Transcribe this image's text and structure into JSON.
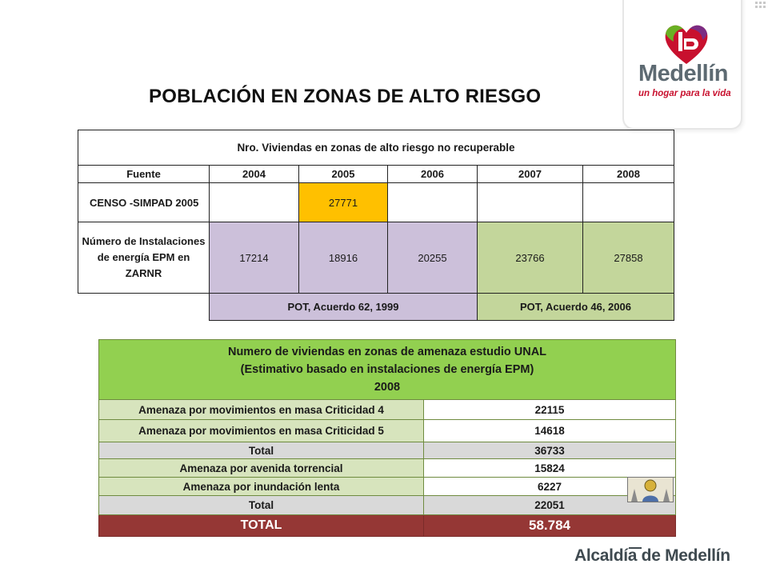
{
  "title": "POBLACIÓN EN ZONAS DE ALTO RIESGO",
  "logo": {
    "name": "Medellín",
    "tagline": "un hogar para la vida",
    "colors": {
      "red": "#c8102e",
      "green": "#6ab023",
      "purple": "#7b2c83",
      "gray": "#5d6a72"
    }
  },
  "table1": {
    "caption": "Nro. Viviendas en zonas de alto riesgo no recuperable",
    "headers": [
      "Fuente",
      "2004",
      "2005",
      "2006",
      "2007",
      "2008"
    ],
    "rows": [
      {
        "label": "CENSO -SIMPAD 2005",
        "values": [
          "",
          "27771",
          "",
          "",
          ""
        ]
      },
      {
        "label": "Número de Instalaciones de energía EPM en ZARNR",
        "values": [
          "17214",
          "18916",
          "20255",
          "23766",
          "27858"
        ]
      }
    ],
    "sources": [
      "POT, Acuerdo 62, 1999",
      "POT, Acuerdo 46, 2006"
    ],
    "colors": {
      "highlight": "#ffc000",
      "pot62": "#ccc0da",
      "pot46": "#c3d69b"
    }
  },
  "table2": {
    "header_lines": [
      "Numero de viviendas en zonas de amenaza estudio UNAL",
      "(Estimativo basado en instalaciones de energía EPM)",
      "2008"
    ],
    "rows": [
      {
        "label": "Amenaza por movimientos en masa Criticidad 4",
        "value": "22115"
      },
      {
        "label": "Amenaza por movimientos en masa Criticidad 5",
        "value": "14618"
      },
      {
        "label": "Total",
        "value": "36733"
      },
      {
        "label": "Amenaza por avenida torrencial",
        "value": "15824"
      },
      {
        "label": "Amenaza por inundación lenta",
        "value": "6227"
      },
      {
        "label": "Total",
        "value": "22051"
      }
    ],
    "grand_total": {
      "label": "TOTAL",
      "value": "58.784"
    },
    "colors": {
      "header": "#92d050",
      "label": "#d7e4bd",
      "total": "#d9d9d9",
      "grand": "#953735"
    }
  },
  "footer": {
    "brand": "Alcaldía de Medellín"
  }
}
